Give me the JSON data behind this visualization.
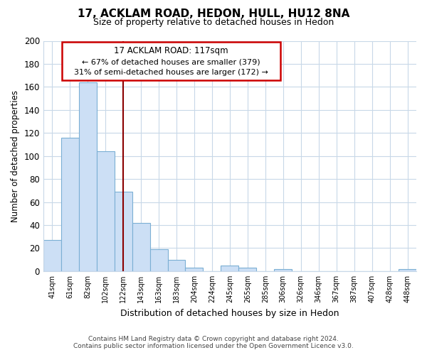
{
  "title": "17, ACKLAM ROAD, HEDON, HULL, HU12 8NA",
  "subtitle": "Size of property relative to detached houses in Hedon",
  "xlabel": "Distribution of detached houses by size in Hedon",
  "ylabel": "Number of detached properties",
  "bar_labels": [
    "41sqm",
    "61sqm",
    "82sqm",
    "102sqm",
    "122sqm",
    "143sqm",
    "163sqm",
    "183sqm",
    "204sqm",
    "224sqm",
    "245sqm",
    "265sqm",
    "285sqm",
    "306sqm",
    "326sqm",
    "346sqm",
    "367sqm",
    "387sqm",
    "407sqm",
    "428sqm",
    "448sqm"
  ],
  "bar_values": [
    27,
    116,
    164,
    104,
    69,
    42,
    19,
    10,
    3,
    0,
    5,
    3,
    0,
    2,
    0,
    0,
    0,
    0,
    0,
    0,
    2
  ],
  "bar_color": "#ccdff5",
  "bar_edge_color": "#7bafd4",
  "property_line_color": "#8b0000",
  "property_line_index": 4,
  "ylim": [
    0,
    200
  ],
  "yticks": [
    0,
    20,
    40,
    60,
    80,
    100,
    120,
    140,
    160,
    180,
    200
  ],
  "annotation_title": "17 ACKLAM ROAD: 117sqm",
  "annotation_line1": "← 67% of detached houses are smaller (379)",
  "annotation_line2": "31% of semi-detached houses are larger (172) →",
  "annotation_box_color": "#ffffff",
  "annotation_box_edge": "#cc0000",
  "footer_line1": "Contains HM Land Registry data © Crown copyright and database right 2024.",
  "footer_line2": "Contains public sector information licensed under the Open Government Licence v3.0.",
  "grid_color": "#c8d8e8",
  "background_color": "#ffffff"
}
